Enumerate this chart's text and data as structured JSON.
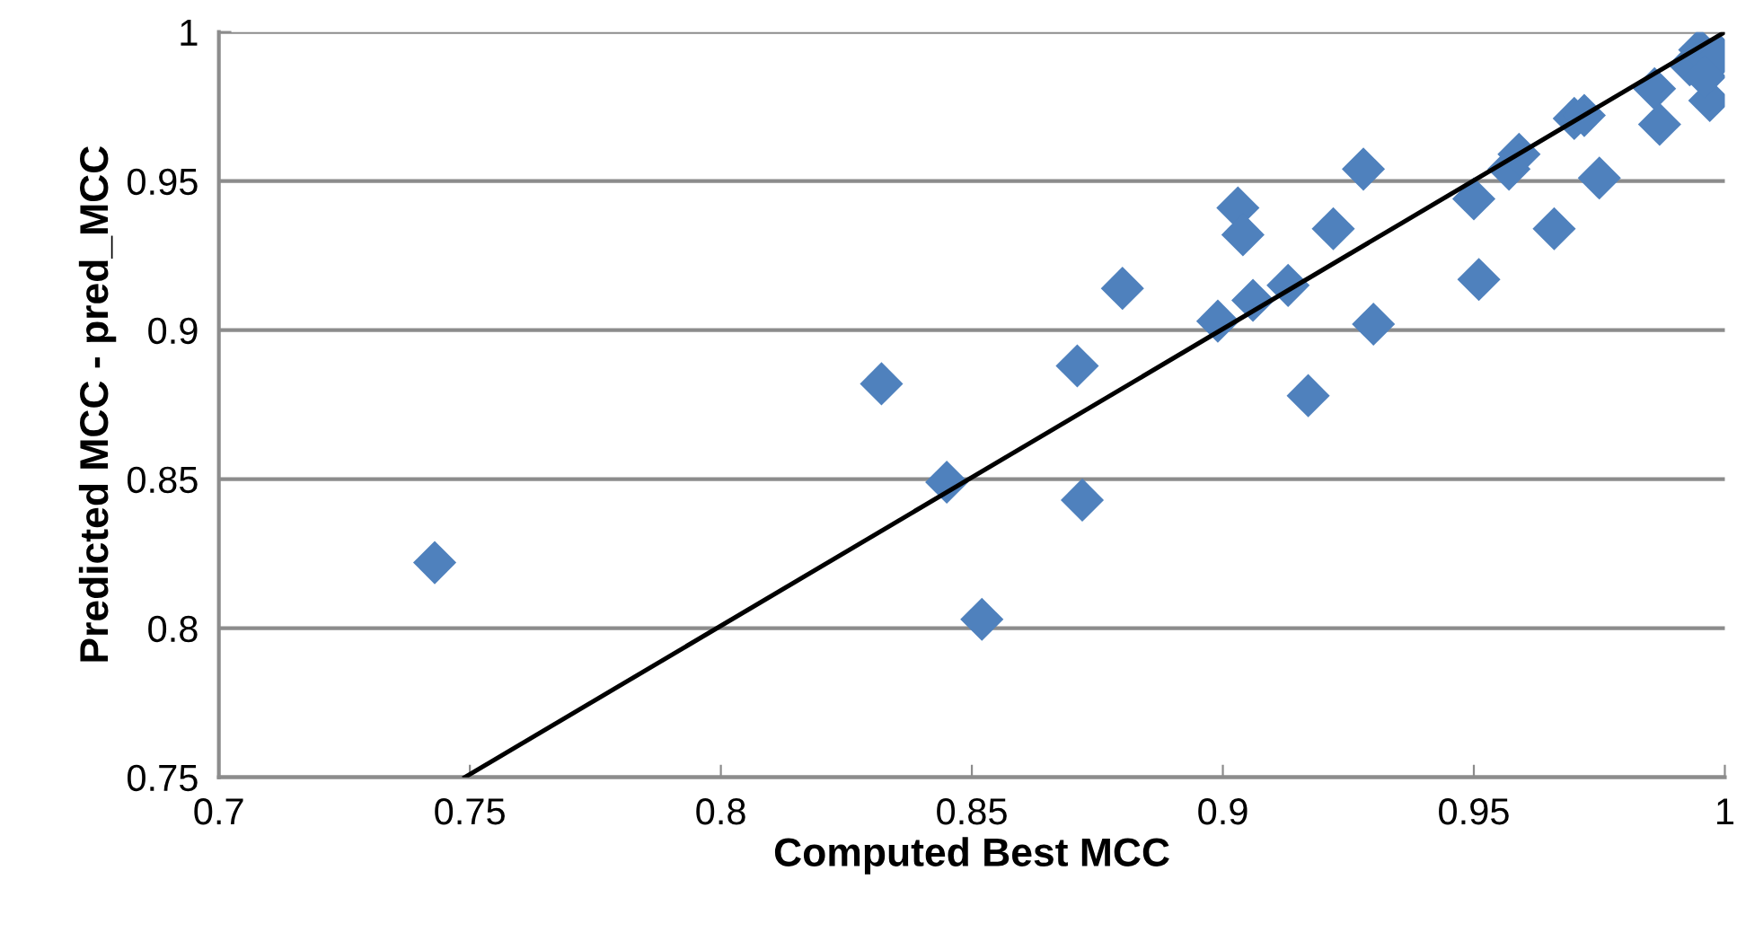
{
  "chart_data": {
    "type": "scatter",
    "xlabel": "Computed Best MCC",
    "ylabel": "Predicted MCC - pred_MCC",
    "xlim": [
      0.7,
      1
    ],
    "ylim": [
      0.75,
      1
    ],
    "xticks": [
      {
        "value": 0.7,
        "label": "0.7"
      },
      {
        "value": 0.75,
        "label": "0.75"
      },
      {
        "value": 0.8,
        "label": "0.8"
      },
      {
        "value": 0.85,
        "label": "0.85"
      },
      {
        "value": 0.9,
        "label": "0.9"
      },
      {
        "value": 0.95,
        "label": "0.95"
      },
      {
        "value": 1,
        "label": "1"
      }
    ],
    "yticks": [
      {
        "value": 0.75,
        "label": "0.75"
      },
      {
        "value": 0.8,
        "label": "0.8"
      },
      {
        "value": 0.85,
        "label": "0.85"
      },
      {
        "value": 0.9,
        "label": "0.9"
      },
      {
        "value": 0.95,
        "label": "0.95"
      },
      {
        "value": 1,
        "label": "1"
      }
    ],
    "grid": "y",
    "marker": "diamond",
    "legend": false,
    "series": [
      {
        "color": "#4f81bd",
        "x": [
          0.743,
          0.832,
          0.845,
          0.852,
          0.871,
          0.872,
          0.88,
          0.899,
          0.903,
          0.904,
          0.906,
          0.913,
          0.917,
          0.922,
          0.928,
          0.93,
          0.95,
          0.951,
          0.957,
          0.959,
          0.966,
          0.97,
          0.972,
          0.975,
          0.986,
          0.987,
          0.993,
          0.995,
          0.997,
          0.999,
          0.996
        ],
        "values": [
          0.822,
          0.882,
          0.849,
          0.803,
          0.888,
          0.843,
          0.914,
          0.903,
          0.941,
          0.932,
          0.91,
          0.915,
          0.878,
          0.934,
          0.954,
          0.902,
          0.944,
          0.917,
          0.954,
          0.959,
          0.934,
          0.971,
          0.972,
          0.951,
          0.981,
          0.969,
          0.989,
          0.994,
          0.977,
          0.992,
          0.985
        ]
      },
      {
        "type": "line",
        "color": "#000000",
        "x": [
          0.749,
          1.0
        ],
        "values": [
          0.75,
          1.0
        ],
        "marker": "none"
      }
    ]
  }
}
